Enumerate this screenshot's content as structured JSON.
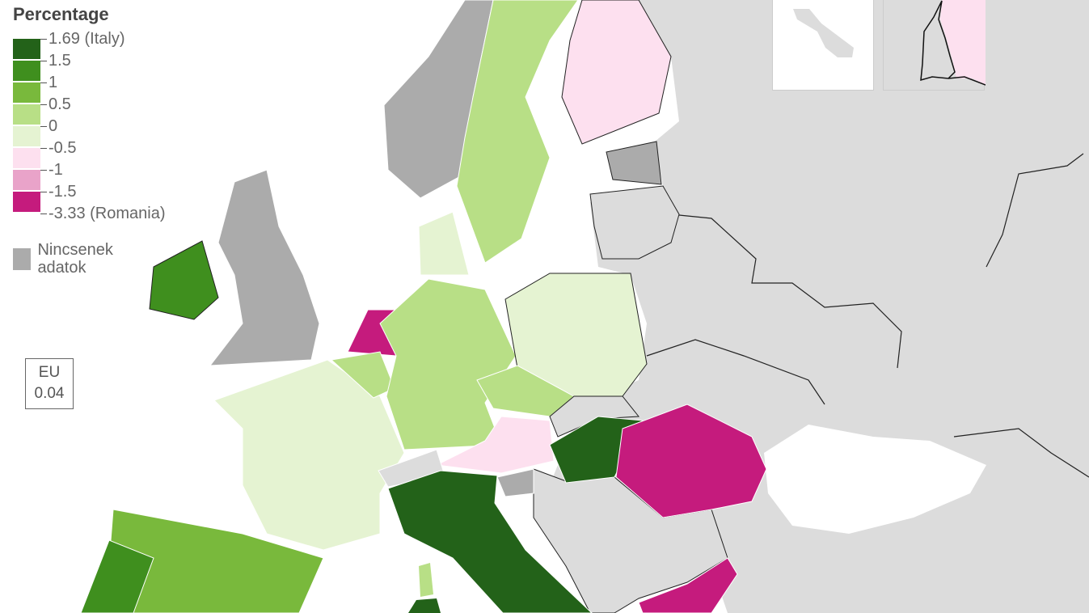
{
  "legend": {
    "title": "Percentage",
    "classes": [
      {
        "label": "1.69 (Italy)",
        "color": "#236219"
      },
      {
        "label": "1.5",
        "color": "#3f8f1e"
      },
      {
        "label": "1",
        "color": "#79b93c"
      },
      {
        "label": "0.5",
        "color": "#b8df86"
      },
      {
        "label": "0",
        "color": "#e5f3d2"
      },
      {
        "label": "-0.5",
        "color": "#fde0ef"
      },
      {
        "label": "-1",
        "color": "#e9a3c9"
      },
      {
        "label": "-1.5",
        "color": "#c51b7d"
      },
      {
        "label": "-3.33 (Romania)",
        "color": ""
      }
    ],
    "no_data_label": "Nincsenek adatok",
    "no_data_color": "#ababab"
  },
  "eu_box": {
    "label": "EU",
    "value": "0.04"
  },
  "colors": {
    "non_eu_land": "#dcdcdc",
    "sea": "#ffffff",
    "border": "#1a1a1a"
  }
}
